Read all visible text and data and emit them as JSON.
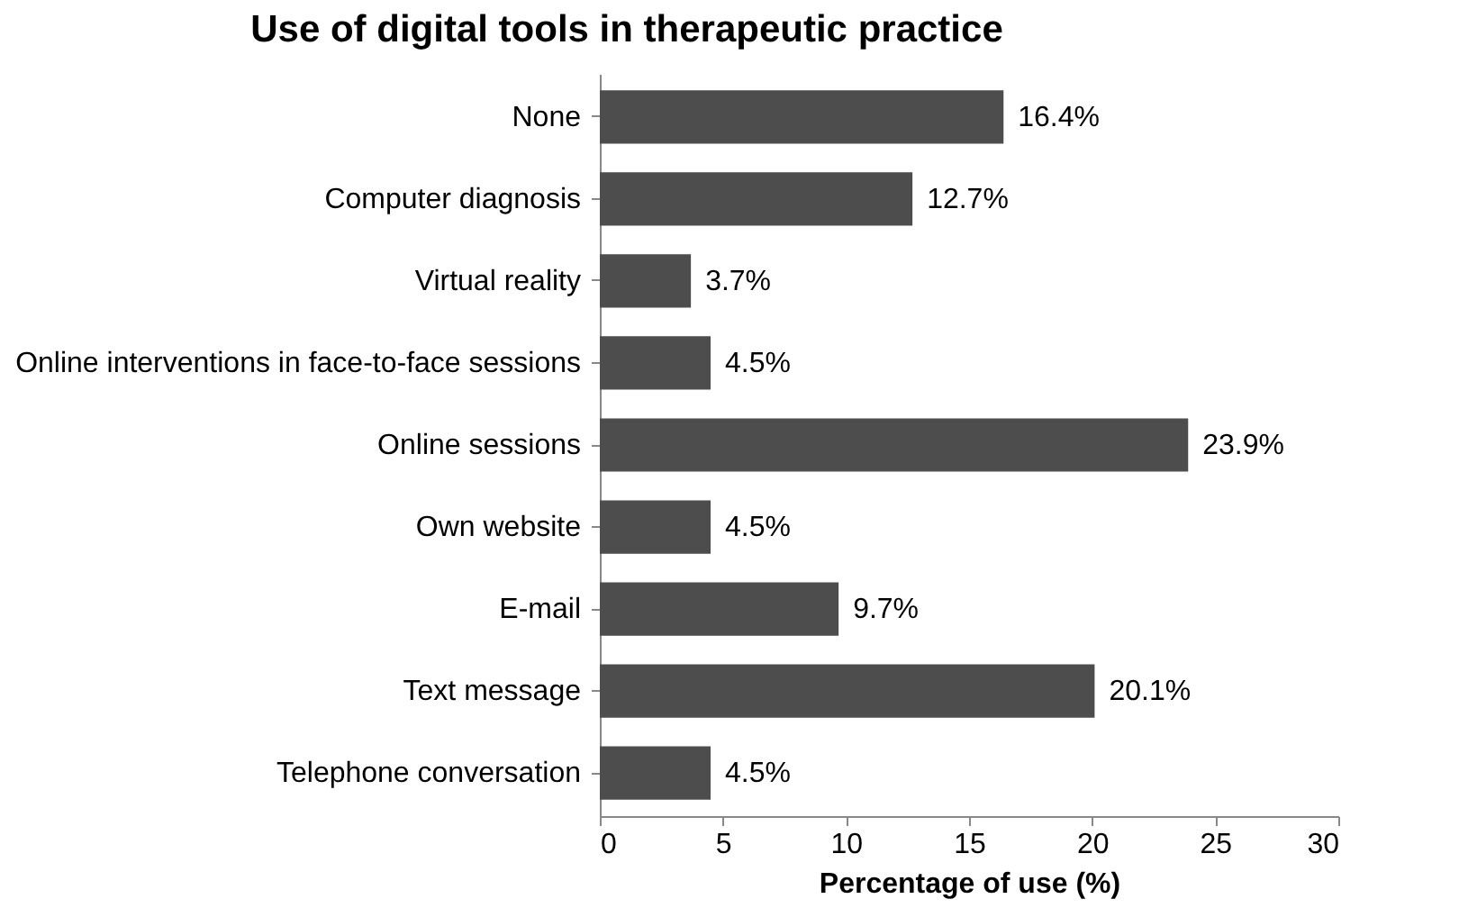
{
  "chart_data": {
    "type": "bar",
    "orientation": "horizontal",
    "title": "Use of digital tools in therapeutic practice",
    "xlabel": "Percentage of use (%)",
    "categories": [
      "None",
      "Computer diagnosis",
      "Virtual reality",
      "Online interventions in face-to-face sessions",
      "Online sessions",
      "Own website",
      "E-mail",
      "Text message",
      "Telephone conversation"
    ],
    "values": [
      16.4,
      12.7,
      3.7,
      4.5,
      23.9,
      4.5,
      9.7,
      20.1,
      4.5
    ],
    "value_labels": [
      "16.4%",
      "12.7%",
      "3.7%",
      "4.5%",
      "23.9%",
      "4.5%",
      "9.7%",
      "20.1%",
      "4.5%"
    ],
    "color": "#4d4d4d",
    "xlim": [
      0,
      30
    ],
    "xticks": [
      0,
      5,
      10,
      15,
      20,
      25,
      30
    ],
    "grid": false
  }
}
